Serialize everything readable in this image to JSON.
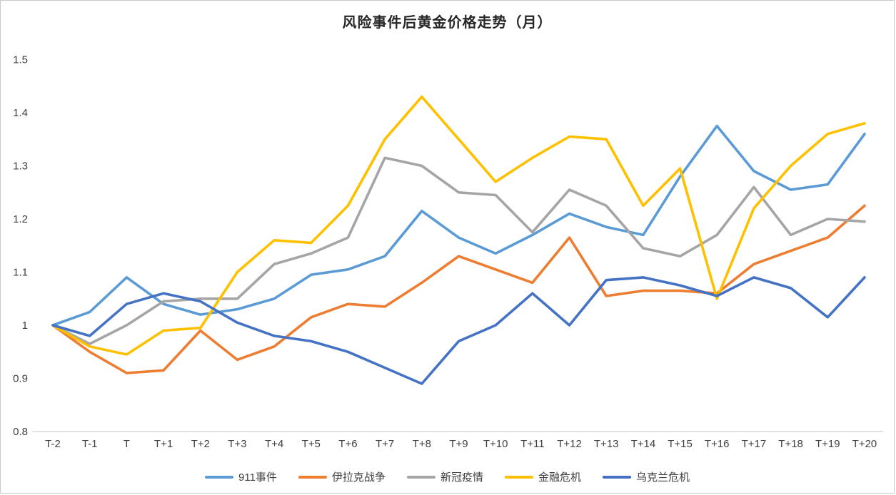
{
  "chart_data": {
    "type": "line",
    "title": "风险事件后黄金价格走势（月）",
    "xlabel": "",
    "ylabel": "",
    "ylim": [
      0.8,
      1.5
    ],
    "ytick_labels": [
      "1.5",
      "1.4",
      "1.3",
      "1.2",
      "1.1",
      "1",
      "0.9",
      "0.8"
    ],
    "ytick_values": [
      1.5,
      1.4,
      1.3,
      1.2,
      1.1,
      1.0,
      0.9,
      0.8
    ],
    "grid": false,
    "legend_position": "bottom",
    "axis_line_color": "#d9d9d9",
    "text_color": "#404040",
    "categories": [
      "T-2",
      "T-1",
      "T",
      "T+1",
      "T+2",
      "T+3",
      "T+4",
      "T+5",
      "T+6",
      "T+7",
      "T+8",
      "T+9",
      "T+10",
      "T+11",
      "T+12",
      "T+13",
      "T+14",
      "T+15",
      "T+16",
      "T+17",
      "T+18",
      "T+19",
      "T+20"
    ],
    "series": [
      {
        "name": "911事件",
        "color": "#5B9BD5",
        "values": [
          1.0,
          1.025,
          1.09,
          1.04,
          1.02,
          1.03,
          1.05,
          1.095,
          1.105,
          1.13,
          1.215,
          1.165,
          1.135,
          1.17,
          1.21,
          1.185,
          1.17,
          1.28,
          1.375,
          1.29,
          1.255,
          1.265,
          1.36
        ]
      },
      {
        "name": "伊拉克战争",
        "color": "#ED7D31",
        "values": [
          1.0,
          0.95,
          0.91,
          0.915,
          0.99,
          0.935,
          0.96,
          1.015,
          1.04,
          1.035,
          1.08,
          1.13,
          1.105,
          1.08,
          1.165,
          1.055,
          1.065,
          1.065,
          1.06,
          1.115,
          1.14,
          1.165,
          1.225
        ]
      },
      {
        "name": "新冠疫情",
        "color": "#A5A5A5",
        "values": [
          1.0,
          0.965,
          1.0,
          1.045,
          1.05,
          1.05,
          1.115,
          1.135,
          1.165,
          1.315,
          1.3,
          1.25,
          1.245,
          1.175,
          1.255,
          1.225,
          1.145,
          1.13,
          1.17,
          1.26,
          1.17,
          1.2,
          1.195
        ]
      },
      {
        "name": "金融危机",
        "color": "#FFC000",
        "values": [
          1.0,
          0.96,
          0.945,
          0.99,
          0.995,
          1.1,
          1.16,
          1.155,
          1.225,
          1.35,
          1.43,
          1.35,
          1.27,
          1.315,
          1.355,
          1.35,
          1.225,
          1.295,
          1.05,
          1.22,
          1.3,
          1.36,
          1.38
        ]
      },
      {
        "name": "乌克兰危机",
        "color": "#4472C4",
        "values": [
          1.0,
          0.98,
          1.04,
          1.06,
          1.045,
          1.005,
          0.98,
          0.97,
          0.95,
          0.92,
          0.89,
          0.97,
          1.0,
          1.06,
          1.0,
          1.085,
          1.09,
          1.075,
          1.055,
          1.09,
          1.07,
          1.015,
          1.09
        ]
      }
    ]
  }
}
